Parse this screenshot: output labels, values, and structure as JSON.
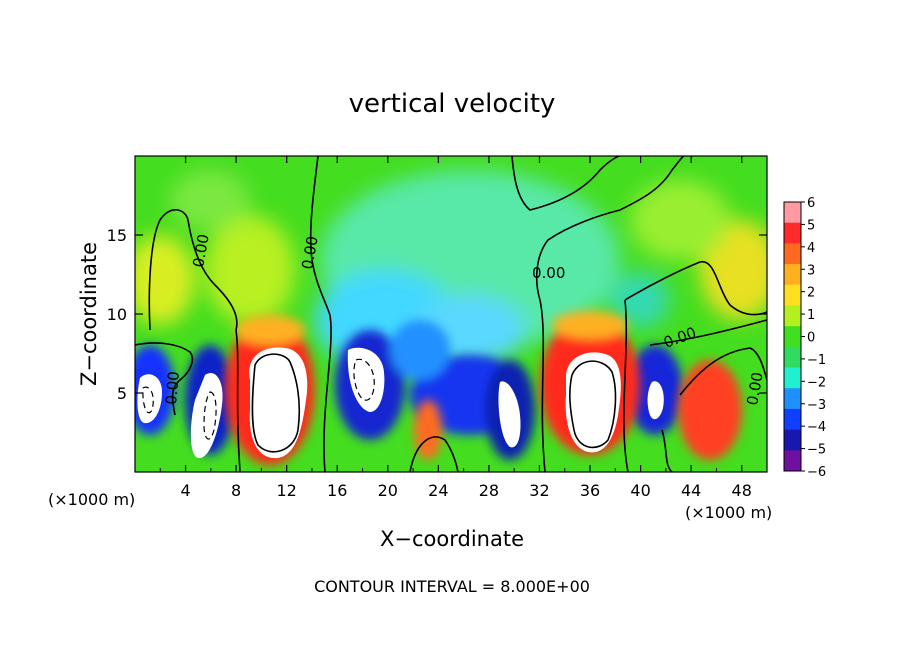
{
  "chart_data": {
    "type": "heatmap",
    "title": "vertical velocity",
    "xlabel": "X−coordinate",
    "ylabel": "Z−coordinate",
    "x_unit_left": "(×1000 m)",
    "x_unit_right": "(×1000 m)",
    "footer": "CONTOUR INTERVAL = 8.000E+00",
    "xlim": [
      0,
      50
    ],
    "ylim": [
      0,
      20
    ],
    "x_ticks": [
      "4",
      "8",
      "12",
      "16",
      "20",
      "24",
      "28",
      "32",
      "36",
      "40",
      "44",
      "48"
    ],
    "y_ticks": [
      "5",
      "10",
      "15"
    ],
    "colorbar": {
      "labels": [
        "6",
        "5",
        "4",
        "3",
        "2",
        "1",
        "0",
        "−1",
        "−2",
        "−3",
        "−4",
        "−5",
        "−6"
      ],
      "colors": [
        "#ff9aa0",
        "#ff2a2a",
        "#ff6a20",
        "#ffb020",
        "#ffe020",
        "#b4f020",
        "#40e020",
        "#30dc60",
        "#20f0d0",
        "#2090ff",
        "#1040ff",
        "#1818b0",
        "#7010a0"
      ]
    },
    "contour_labels": [
      "0.00",
      "0.00",
      "0.00",
      "0.00",
      "0.00",
      "0.00"
    ],
    "features": [
      {
        "kind": "updraft",
        "x": 11,
        "z": 5.5,
        "w": 6
      },
      {
        "kind": "updraft",
        "x": 35.5,
        "z": 5.5,
        "w": 6
      },
      {
        "kind": "updraft",
        "x": 45,
        "z": 3.5,
        "w": 4
      },
      {
        "kind": "updraft",
        "x": 23,
        "z": 2.5,
        "w": 4
      },
      {
        "kind": "downdraft",
        "x": 1,
        "z": 5,
        "w": -6
      },
      {
        "kind": "downdraft",
        "x": 5.5,
        "z": 3.5,
        "w": -6
      },
      {
        "kind": "downdraft",
        "x": 18,
        "z": 5.5,
        "w": -6
      },
      {
        "kind": "downdraft",
        "x": 28,
        "z": 4,
        "w": -6
      },
      {
        "kind": "downdraft",
        "x": 41,
        "z": 5,
        "w": -6
      }
    ]
  }
}
